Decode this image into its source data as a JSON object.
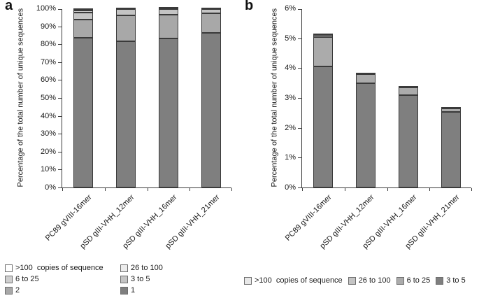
{
  "figure": {
    "panels": [
      {
        "label": "a"
      },
      {
        "label": "b"
      }
    ]
  },
  "chart_data": [
    {
      "type": "bar",
      "stacked": true,
      "panel_label": "a",
      "ylabel": "Percentage of the total number of unique sequences",
      "ylim": [
        0,
        100
      ],
      "ytick_step": 10,
      "ytick_suffix": "%",
      "grid": false,
      "categories": [
        "PC89 gVIII-16mer",
        "pSD gIII-VHH_12mer",
        "pSD gIII-VHH_16mer",
        "pSD gIII-VHH_21mer"
      ],
      "series": [
        {
          "name": "1",
          "color": "#7f7f7f",
          "values": [
            83.6,
            81.6,
            83.2,
            86.2
          ]
        },
        {
          "name": "2",
          "color": "#a8a8a8",
          "values": [
            10.2,
            14.4,
            13.3,
            11.0
          ]
        },
        {
          "name": "3 to 5",
          "color": "#c4c4c4",
          "values": [
            3.8,
            3.6,
            3.2,
            2.4
          ]
        },
        {
          "name": "6 to 25",
          "color": "#cfcfcf",
          "values": [
            1.2,
            0.25,
            0.15,
            0.2
          ]
        },
        {
          "name": "26 to 100",
          "color": "#ececec",
          "values": [
            0.3,
            0.05,
            0.05,
            0.05
          ]
        },
        {
          "name": ">100  copies of sequence",
          "color": "#ffffff",
          "values": [
            0.9,
            0.1,
            0.1,
            0.15
          ]
        }
      ],
      "legend": {
        "position": "bottom",
        "columns": 2,
        "entries": [
          ">100  copies of sequence",
          "26 to 100",
          "6 to 25",
          "3 to 5",
          "2",
          "1"
        ]
      }
    },
    {
      "type": "bar",
      "stacked": true,
      "panel_label": "b",
      "ylabel": "Percentage of the total number of unique sequences",
      "ylim": [
        0,
        6
      ],
      "ytick_step": 1,
      "ytick_suffix": "%",
      "grid": false,
      "categories": [
        "PC89 gVIII-16mer",
        "pSD gIII-VHH_12mer",
        "pSD gIII-VHH_16mer",
        "pSD gIII-VHH_21mer"
      ],
      "series": [
        {
          "name": "3 to 5",
          "color": "#7f7f7f",
          "values": [
            4.05,
            3.5,
            3.1,
            2.53
          ]
        },
        {
          "name": "6 to 25",
          "color": "#ababab",
          "values": [
            1.0,
            0.3,
            0.26,
            0.13
          ]
        },
        {
          "name": "26 to 100",
          "color": "#c4c4c4",
          "values": [
            0.06,
            0.02,
            0.03,
            0.02
          ]
        },
        {
          "name": ">100  copies of sequence",
          "color": "#e8e8e8",
          "values": [
            0.04,
            0.02,
            0.02,
            0.02
          ]
        }
      ],
      "legend": {
        "position": "bottom",
        "columns": 4,
        "entries": [
          ">100  copies of sequence",
          "26 to 100",
          "6 to 25",
          "3 to 5"
        ]
      }
    }
  ]
}
